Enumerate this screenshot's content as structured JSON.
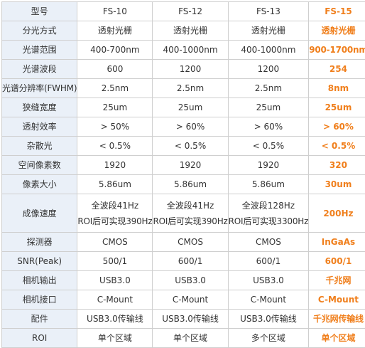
{
  "columns": [
    "型号",
    "FS-10",
    "FS-12",
    "FS-13",
    "FS-15"
  ],
  "rows": [
    {
      "label": "分光方式",
      "values": [
        "透射光栅",
        "透射光栅",
        "透射光栅",
        "透射光栅"
      ]
    },
    {
      "label": "光谱范围",
      "values": [
        "400-700nm",
        "400-1000nm",
        "400-1000nm",
        "900-1700nm"
      ]
    },
    {
      "label": "光谱波段",
      "values": [
        "600",
        "1200",
        "1200",
        "254"
      ]
    },
    {
      "label": "光谱分辨率(FWHM)",
      "values": [
        "2.5nm",
        "2.5nm",
        "2.5nm",
        "8nm"
      ]
    },
    {
      "label": "狭缝宽度",
      "values": [
        "25um",
        "25um",
        "25um",
        "25um"
      ]
    },
    {
      "label": "透射效率",
      "values": [
        "> 50%",
        "> 60%",
        "> 60%",
        "> 60%"
      ]
    },
    {
      "label": "杂散光",
      "values": [
        "< 0.5%",
        "< 0.5%",
        "< 0.5%",
        "< 0.5%"
      ]
    },
    {
      "label": "空间像素数",
      "values": [
        "1920",
        "1920",
        "1920",
        "320"
      ]
    },
    {
      "label": "像素大小",
      "values": [
        "5.86um",
        "5.86um",
        "5.86um",
        "30um"
      ]
    },
    {
      "label": "成像速度",
      "values": [
        {
          "line1": "全波段41Hz",
          "line2": "ROI后可实现390Hz"
        },
        {
          "line1": "全波段41Hz",
          "line2": "ROI后可实现390Hz"
        },
        {
          "line1": "全波段128Hz",
          "line2": "ROI后可实现3300Hz"
        },
        "200Hz"
      ]
    },
    {
      "label": "探测器",
      "values": [
        "CMOS",
        "CMOS",
        "CMOS",
        "InGaAs"
      ]
    },
    {
      "label": "SNR(Peak)",
      "values": [
        "500/1",
        "600/1",
        "600/1",
        "600/1"
      ]
    },
    {
      "label": "相机输出",
      "values": [
        "USB3.0",
        "USB3.0",
        "USB3.0",
        "千兆网"
      ]
    },
    {
      "label": "相机接口",
      "values": [
        "C-Mount",
        "C-Mount",
        "C-Mount",
        "C-Mount"
      ]
    },
    {
      "label": "配件",
      "values": [
        "USB3.0传输线",
        "USB3.0传输线",
        "USB3.0传输线",
        "千兆网传输线"
      ]
    },
    {
      "label": "ROI",
      "values": [
        "单个区域",
        "单个区域",
        "多个区域",
        "单个区域"
      ]
    }
  ],
  "colors": {
    "highlight": "#f07f1c",
    "label_bg": "#eaf0f8",
    "border": "#cfcfcf",
    "text": "#333333"
  }
}
